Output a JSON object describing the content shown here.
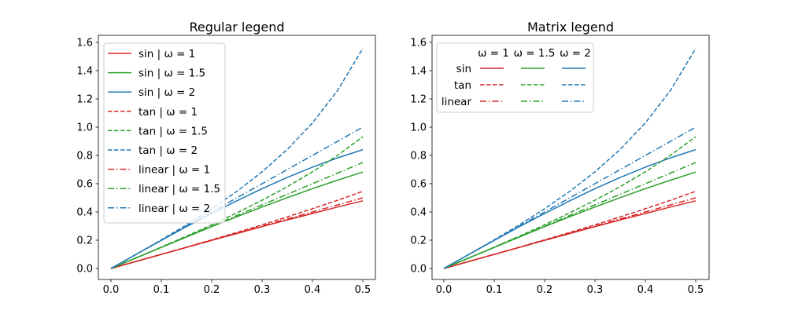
{
  "chart_data": [
    {
      "type": "line",
      "title": "Regular legend",
      "legend": "upper-left",
      "xlim": [
        -0.025,
        0.525
      ],
      "ylim": [
        -0.078,
        1.635
      ],
      "xticks": [
        "0.0",
        "0.1",
        "0.2",
        "0.3",
        "0.4",
        "0.5"
      ],
      "yticks": [
        "0.0",
        "0.2",
        "0.4",
        "0.6",
        "0.8",
        "1.0",
        "1.2",
        "1.4",
        "1.6"
      ],
      "x": [
        0,
        0.05,
        0.1,
        0.15,
        0.2,
        0.25,
        0.3,
        0.35,
        0.4,
        0.45,
        0.5
      ],
      "series": [
        {
          "name": "sin | ω = 1",
          "color": "#d62728",
          "style": "solid",
          "values": [
            0,
            0.05,
            0.1,
            0.149,
            0.199,
            0.247,
            0.296,
            0.344,
            0.389,
            0.435,
            0.479
          ]
        },
        {
          "name": "sin | ω = 1.5",
          "color": "#2ca02c",
          "style": "solid",
          "values": [
            0,
            0.075,
            0.149,
            0.223,
            0.296,
            0.366,
            0.435,
            0.501,
            0.565,
            0.625,
            0.682
          ]
        },
        {
          "name": "sin | ω = 2",
          "color": "#1f77b4",
          "style": "solid",
          "values": [
            0,
            0.1,
            0.199,
            0.296,
            0.389,
            0.479,
            0.565,
            0.644,
            0.717,
            0.783,
            0.841
          ]
        },
        {
          "name": "tan | ω = 1",
          "color": "#d62728",
          "style": "dashed",
          "values": [
            0,
            0.05,
            0.1,
            0.151,
            0.203,
            0.255,
            0.309,
            0.365,
            0.423,
            0.483,
            0.546
          ]
        },
        {
          "name": "tan | ω = 1.5",
          "color": "#2ca02c",
          "style": "dashed",
          "values": [
            0,
            0.075,
            0.151,
            0.229,
            0.309,
            0.394,
            0.483,
            0.579,
            0.684,
            0.801,
            0.932
          ]
        },
        {
          "name": "tan | ω = 2",
          "color": "#1f77b4",
          "style": "dashed",
          "values": [
            0,
            0.1,
            0.203,
            0.309,
            0.423,
            0.546,
            0.684,
            0.842,
            1.03,
            1.26,
            1.557
          ]
        },
        {
          "name": "linear | ω = 1",
          "color": "#d62728",
          "style": "dashdot",
          "values": [
            0,
            0.05,
            0.1,
            0.15,
            0.2,
            0.25,
            0.3,
            0.35,
            0.4,
            0.45,
            0.5
          ]
        },
        {
          "name": "linear | ω = 1.5",
          "color": "#2ca02c",
          "style": "dashdot",
          "values": [
            0,
            0.075,
            0.15,
            0.225,
            0.3,
            0.375,
            0.45,
            0.525,
            0.6,
            0.675,
            0.75
          ]
        },
        {
          "name": "linear | ω = 2",
          "color": "#1f77b4",
          "style": "dashdot",
          "values": [
            0,
            0.1,
            0.2,
            0.3,
            0.4,
            0.5,
            0.6,
            0.7,
            0.8,
            0.9,
            1.0
          ]
        }
      ]
    },
    {
      "type": "line",
      "title": "Matrix legend",
      "legend": "upper-left",
      "legend_columns": [
        "ω = 1",
        "ω = 1.5",
        "ω = 2"
      ],
      "legend_rows": [
        "sin",
        "tan",
        "linear"
      ],
      "xlim": [
        -0.025,
        0.525
      ],
      "ylim": [
        -0.078,
        1.635
      ],
      "xticks": [
        "0.0",
        "0.1",
        "0.2",
        "0.3",
        "0.4",
        "0.5"
      ],
      "yticks": [
        "0.0",
        "0.2",
        "0.4",
        "0.6",
        "0.8",
        "1.0",
        "1.2",
        "1.4",
        "1.6"
      ],
      "same_series_as": "Regular legend"
    }
  ]
}
